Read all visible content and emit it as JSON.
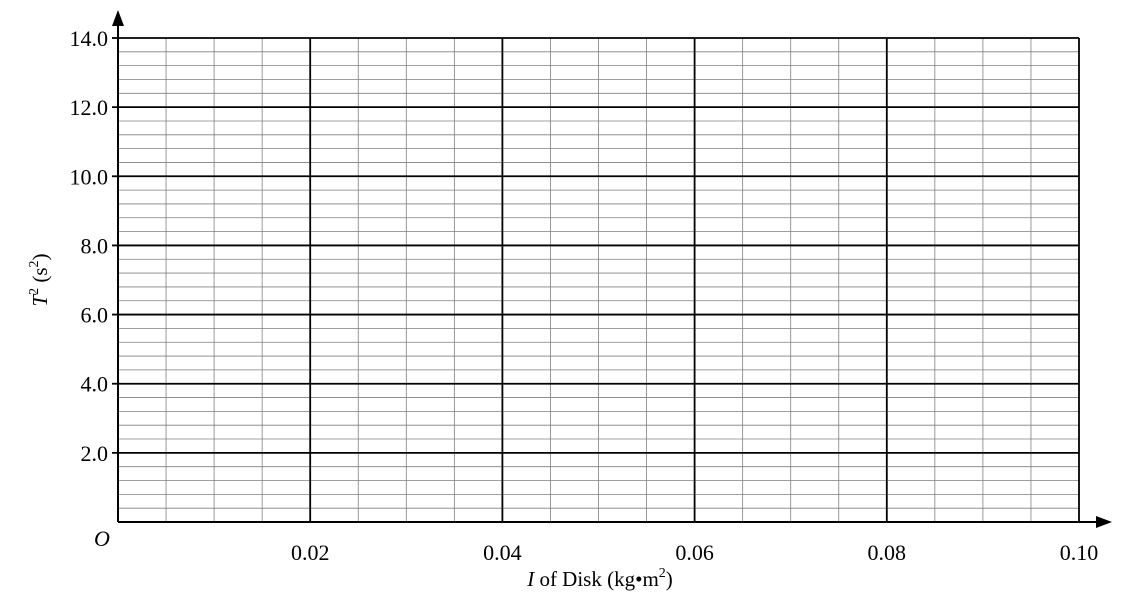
{
  "chart_data": {
    "type": "scatter",
    "title": "",
    "x": [],
    "y": [],
    "xlim": [
      0,
      0.1
    ],
    "ylim": [
      0,
      14.0
    ],
    "x_ticks": [
      0.02,
      0.04,
      0.06,
      0.08,
      0.1
    ],
    "y_ticks": [
      2.0,
      4.0,
      6.0,
      8.0,
      10.0,
      12.0,
      14.0
    ],
    "x_tick_labels": [
      "0.02",
      "0.04",
      "0.06",
      "0.08",
      "0.10"
    ],
    "y_tick_labels": [
      "2.0",
      "4.0",
      "6.0",
      "8.0",
      "10.0",
      "12.0",
      "14.0"
    ],
    "origin_label": "O",
    "xlabel": {
      "symbol": "I",
      "text": " of Disk (kg•m",
      "sup": "2",
      "close": ")"
    },
    "ylabel": {
      "symbol": "T",
      "sup": "2",
      "text": " (s",
      "unit_sup": "2",
      "close": ")"
    },
    "grid": {
      "on": true,
      "major_x_step": 0.02,
      "minor_x_step": 0.005,
      "major_y_step": 2.0,
      "minor_y_step": 0.4
    },
    "colors": {
      "axis": "#000000",
      "major_grid": "#000000",
      "minor_grid": "#808080"
    }
  }
}
